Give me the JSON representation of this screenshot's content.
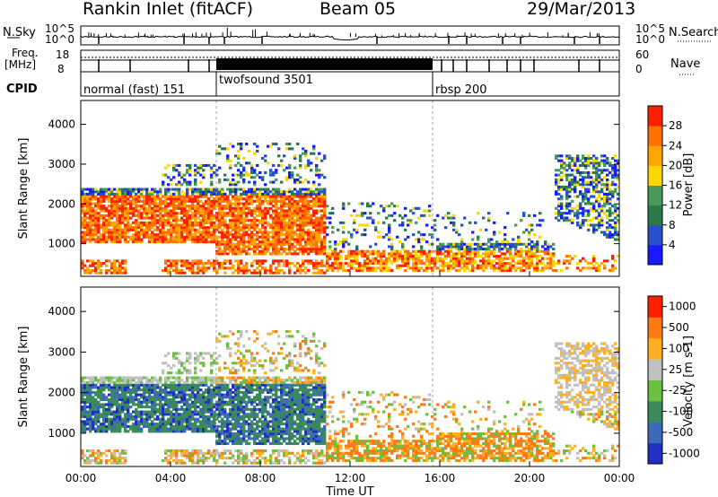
{
  "header": {
    "station": "Rankin Inlet (fitACF)",
    "beam": "Beam 05",
    "date": "29/Mar/2013"
  },
  "chart_data": [
    {
      "type": "line",
      "panel": "noise",
      "left_label": "N.Sky",
      "right_label": "N.Search",
      "left_ticks": [
        "10^5",
        "10^0"
      ],
      "right_ticks": [
        "10^5",
        "10^0"
      ]
    },
    {
      "type": "line",
      "panel": "frequency",
      "left_label_line1": "Freq.",
      "left_label_line2": "[MHz]",
      "right_label": "Nave",
      "left_ticks": [
        "18",
        "8"
      ],
      "right_ticks": [
        "60",
        "0"
      ]
    },
    {
      "type": "table",
      "panel": "cpid",
      "label": "CPID",
      "segments": [
        {
          "name": "normal (fast) 151",
          "start_h": 0,
          "end_h": 6
        },
        {
          "name": "twofsound 3501",
          "start_h": 6,
          "end_h": 15.8
        },
        {
          "name": "rbsp 200",
          "start_h": 15.8,
          "end_h": 24
        }
      ]
    },
    {
      "type": "heatmap",
      "panel": "power",
      "ylabel": "Slant Range [km]",
      "ylim": [
        180,
        4600
      ],
      "yticks": [
        1000,
        2000,
        3000,
        4000
      ],
      "colorbar": {
        "label": "Power [dB]",
        "ticks": [
          "4",
          "8",
          "12",
          "16",
          "20",
          "24",
          "28"
        ],
        "colors": [
          "#1a1aff",
          "#2850c8",
          "#2a7a4a",
          "#4a9a5a",
          "#ffd700",
          "#ffa500",
          "#ff7000",
          "#ff2000"
        ]
      }
    },
    {
      "type": "heatmap",
      "panel": "velocity",
      "ylabel": "Slant Range [km]",
      "xlabel": "Time UT",
      "ylim": [
        180,
        4600
      ],
      "yticks": [
        1000,
        2000,
        3000,
        4000
      ],
      "xticks": [
        "00:00",
        "04:00",
        "08:00",
        "12:00",
        "16:00",
        "20:00",
        "00:00"
      ],
      "colorbar": {
        "label": "Velocity [m s-1]",
        "ticks": [
          "1000",
          "500",
          "100",
          "25",
          "-25",
          "-100",
          "-500",
          "-1000"
        ],
        "colors": [
          "#2030c0",
          "#3a6ab8",
          "#3a8a5a",
          "#6ac040",
          "#c0c0c0",
          "#ffb020",
          "#ff7a10",
          "#ff2000"
        ]
      }
    }
  ]
}
